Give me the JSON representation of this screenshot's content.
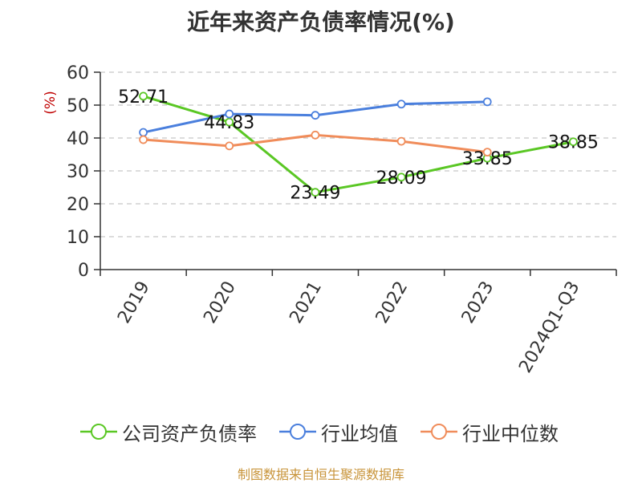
{
  "title": "近年来资产负债率情况(%)",
  "source": "制图数据来自恒生聚源数据库",
  "chart_data": {
    "type": "line",
    "title": "近年来资产负债率情况(%)",
    "xlabel": "",
    "ylabel": "(%)",
    "categories": [
      "2019",
      "2020",
      "2021",
      "2022",
      "2023",
      "2024Q1-Q3"
    ],
    "ylim": [
      0,
      60
    ],
    "yticks": [
      0,
      10,
      20,
      30,
      40,
      50,
      60
    ],
    "grid": true,
    "legend": "bottom",
    "series": [
      {
        "name": "公司资产负债率",
        "color": "#5ac724",
        "values": [
          52.71,
          44.83,
          23.49,
          28.09,
          33.85,
          38.85
        ],
        "labels": [
          "52.71",
          "44.83",
          "23.49",
          "28.09",
          "33.85",
          "38.85"
        ]
      },
      {
        "name": "行业均值",
        "color": "#4a7fdd",
        "values": [
          41.7,
          47.3,
          46.9,
          50.3,
          51.0,
          null
        ]
      },
      {
        "name": "行业中位数",
        "color": "#f08c5a",
        "values": [
          39.5,
          37.6,
          40.9,
          39.0,
          35.7,
          null
        ]
      }
    ]
  }
}
